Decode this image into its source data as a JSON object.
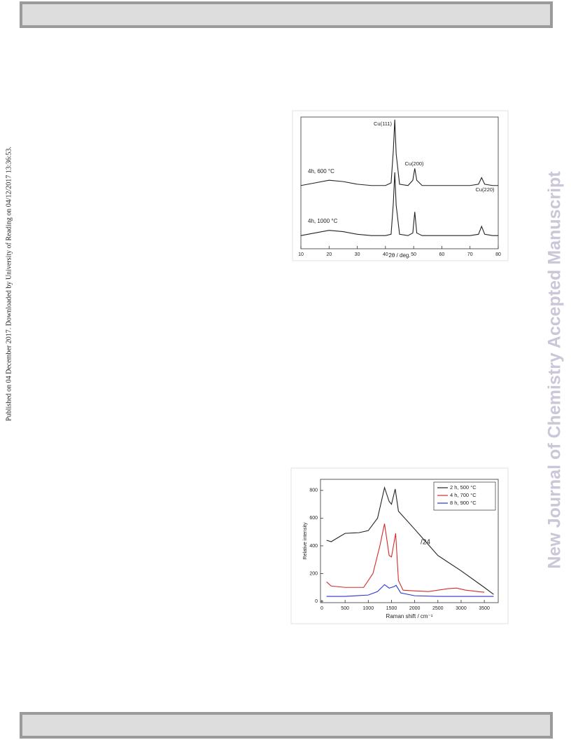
{
  "side_note": "Published on 04 December 2017. Downloaded by University of Reading on 04/12/2017 13:36:53.",
  "watermark": "New Journal of Chemistry Accepted Manuscript",
  "chart_data": [
    {
      "type": "line",
      "x_label": "2θ / deg.",
      "x": [
        10,
        15,
        20,
        25,
        30,
        35,
        40,
        42,
        42.8,
        43.3,
        43.8,
        45,
        48,
        49.7,
        50.4,
        51.1,
        53,
        60,
        70,
        73,
        74.1,
        75.2,
        78,
        80
      ],
      "series": [
        {
          "name": "4h, 600 °C",
          "color": "#222222",
          "values": [
            48,
            50,
            52,
            51,
            49,
            48,
            48,
            50,
            75,
            98,
            72,
            49,
            48,
            52,
            61,
            52,
            48,
            48,
            48,
            49,
            54,
            49,
            48,
            48
          ]
        },
        {
          "name": "4h, 1000 °C",
          "color": "#222222",
          "values": [
            10,
            12,
            14,
            13,
            11,
            10,
            10,
            11,
            35,
            58,
            33,
            11,
            10,
            12,
            28,
            12,
            10,
            10,
            10,
            11,
            17,
            11,
            10,
            10
          ]
        }
      ],
      "annotations": [
        "Cu(111)",
        "Cu(200)",
        "Cu(220)"
      ],
      "xlim": [
        10,
        80
      ],
      "xticks": [
        10,
        20,
        30,
        40,
        50,
        60,
        70,
        80
      ],
      "ylim": [
        0,
        100
      ]
    },
    {
      "type": "line",
      "x_label": "Raman shift / cm⁻¹",
      "y_label": "Relative intensity",
      "series": [
        {
          "name": "2 h, 500 °C",
          "color": "#222222",
          "x": [
            100,
            200,
            500,
            800,
            1000,
            1200,
            1350,
            1450,
            1500,
            1580,
            1650,
            2000,
            2500,
            3000,
            3500,
            3700
          ],
          "values": [
            440,
            430,
            490,
            495,
            510,
            600,
            820,
            720,
            700,
            810,
            650,
            520,
            330,
            220,
            100,
            50
          ]
        },
        {
          "name": "4 h, 700 °C",
          "color": "#d42a2a",
          "x": [
            100,
            200,
            500,
            900,
            1100,
            1250,
            1350,
            1450,
            1500,
            1590,
            1650,
            1750,
            2000,
            2300,
            2700,
            2900,
            3100,
            3500
          ],
          "values": [
            140,
            110,
            100,
            100,
            200,
            400,
            560,
            330,
            320,
            490,
            150,
            80,
            75,
            70,
            90,
            95,
            80,
            65
          ]
        },
        {
          "name": "8 h, 900 °C",
          "color": "#2a35cc",
          "x": [
            100,
            500,
            1000,
            1200,
            1350,
            1450,
            1550,
            1600,
            1700,
            2000,
            2500,
            3000,
            3700
          ],
          "values": [
            35,
            35,
            45,
            70,
            120,
            95,
            105,
            115,
            60,
            40,
            35,
            35,
            35
          ]
        }
      ],
      "annotations": [
        "/24"
      ],
      "legend": "upper right",
      "xlim": [
        -30,
        3800
      ],
      "xticks": [
        0,
        500,
        1000,
        1500,
        2000,
        2500,
        3000,
        3500
      ],
      "ylim": [
        -10,
        880
      ],
      "yticks": [
        0,
        200,
        400,
        600,
        800
      ]
    }
  ]
}
